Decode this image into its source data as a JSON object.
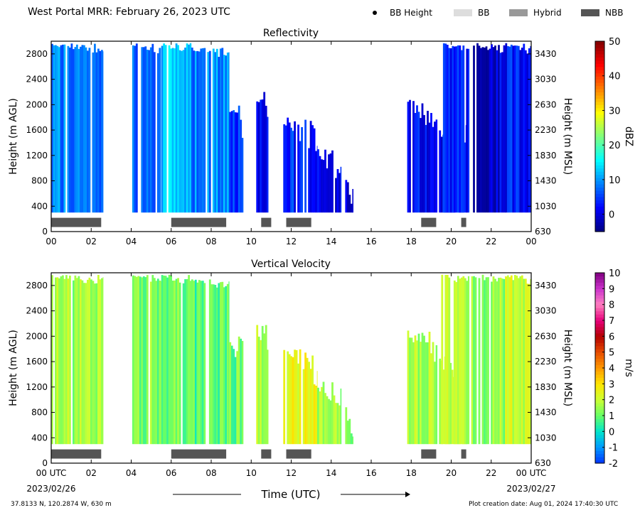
{
  "header": {
    "title": "West Portal MRR:  February 26, 2023 UTC",
    "legend": [
      {
        "label": "BB Height",
        "kind": "dot",
        "color": "#000000"
      },
      {
        "label": "BB",
        "kind": "box",
        "color": "#dddddd"
      },
      {
        "label": "Hybrid",
        "kind": "box",
        "color": "#999999"
      },
      {
        "label": "NBB",
        "kind": "box",
        "color": "#555555"
      }
    ]
  },
  "footer": {
    "coords": "37.8133 N, 120.2874 W, 630 m",
    "created": "Plot creation date: Aug 01, 2024 17:40:30 UTC",
    "x_title": "Time (UTC)",
    "start_time": "00 UTC",
    "start_date": "2023/02/26",
    "end_time": "00 UTC",
    "end_date": "2023/02/27"
  },
  "chart_data": [
    {
      "type": "heatmap",
      "title": "Reflectivity",
      "ylabel": "Height (m AGL)",
      "y2label": "Height (m MSL)",
      "colorbar_label": "dBZ",
      "xlim": [
        0,
        24
      ],
      "ylim": [
        0,
        3000
      ],
      "x_ticks": [
        "00",
        "02",
        "04",
        "06",
        "08",
        "10",
        "12",
        "14",
        "16",
        "18",
        "20",
        "22",
        "00"
      ],
      "y_ticks": [
        0,
        400,
        800,
        1200,
        1600,
        2000,
        2400,
        2800
      ],
      "y2_ticks": [
        630,
        1030,
        1430,
        1830,
        2230,
        2630,
        3030,
        3430
      ],
      "colorbar_range": [
        -5,
        50
      ],
      "colorbar_ticks": [
        0,
        10,
        20,
        30,
        40,
        50
      ],
      "colorbar_colors": [
        "#00007f",
        "#0000ff",
        "#007fff",
        "#00ffff",
        "#7fff7f",
        "#ffff00",
        "#ff7f00",
        "#ff0000",
        "#7f0000"
      ],
      "echo_cells": [
        {
          "start": 0.0,
          "end": 2.6,
          "top": 2970,
          "value": 9
        },
        {
          "start": 4.05,
          "end": 5.5,
          "top": 2970,
          "value": 7
        },
        {
          "start": 5.5,
          "end": 7.0,
          "top": 2970,
          "value": 12
        },
        {
          "start": 7.0,
          "end": 8.9,
          "top": 2900,
          "value": 9
        },
        {
          "start": 8.9,
          "end": 9.6,
          "top": 2000,
          "value": 4
        },
        {
          "start": 10.25,
          "end": 10.85,
          "top": 2200,
          "value": 2
        },
        {
          "start": 11.6,
          "end": 13.3,
          "top": 1800,
          "value": 4
        },
        {
          "start": 13.3,
          "end": 14.5,
          "top": 1300,
          "value": 2
        },
        {
          "start": 14.7,
          "end": 15.1,
          "top": 900,
          "value": 0
        },
        {
          "start": 17.8,
          "end": 19.3,
          "top": 2100,
          "value": 2
        },
        {
          "start": 19.3,
          "end": 20.8,
          "top": 1700,
          "value": 2
        },
        {
          "start": 19.5,
          "end": 20.9,
          "top": 2970,
          "value": 3
        },
        {
          "start": 21.0,
          "end": 22.7,
          "top": 2970,
          "value": 0
        },
        {
          "start": 22.7,
          "end": 24.0,
          "top": 2970,
          "value": 3
        }
      ],
      "nbb_periods": [
        [
          0.0,
          2.5
        ],
        [
          6.0,
          8.75
        ],
        [
          10.5,
          11.0
        ],
        [
          11.75,
          13.0
        ],
        [
          18.5,
          19.25
        ],
        [
          20.5,
          20.75
        ]
      ]
    },
    {
      "type": "heatmap",
      "title": "Vertical Velocity",
      "ylabel": "Height (m AGL)",
      "y2label": "Height (m MSL)",
      "colorbar_label": "m/s",
      "xlim": [
        0,
        24
      ],
      "ylim": [
        0,
        3000
      ],
      "x_ticks": [
        "00 UTC",
        "02",
        "04",
        "06",
        "08",
        "10",
        "12",
        "14",
        "16",
        "18",
        "20",
        "22",
        "00 UTC"
      ],
      "y_ticks": [
        0,
        400,
        800,
        1200,
        1600,
        2000,
        2400,
        2800
      ],
      "y2_ticks": [
        630,
        1030,
        1430,
        1830,
        2230,
        2630,
        3030,
        3430
      ],
      "colorbar_range": [
        -2,
        10
      ],
      "colorbar_ticks": [
        -2,
        -1,
        0,
        1,
        2,
        3,
        4,
        5,
        6,
        7,
        8,
        9,
        10
      ],
      "colorbar_colors": [
        "#0033ff",
        "#0099ff",
        "#00e5cc",
        "#66ff66",
        "#ccff33",
        "#ffe600",
        "#ff9900",
        "#e64d00",
        "#b30000",
        "#e6007a",
        "#ff80c0",
        "#cc33cc",
        "#800080"
      ],
      "echo_cells": [
        {
          "start": 0.0,
          "end": 2.6,
          "top": 2970,
          "value": 1.6
        },
        {
          "start": 4.05,
          "end": 5.5,
          "top": 2970,
          "value": 1.3
        },
        {
          "start": 5.5,
          "end": 7.0,
          "top": 2970,
          "value": 1.0
        },
        {
          "start": 7.0,
          "end": 8.9,
          "top": 2900,
          "value": 0.8
        },
        {
          "start": 8.9,
          "end": 9.6,
          "top": 2000,
          "value": 1.0
        },
        {
          "start": 10.25,
          "end": 10.85,
          "top": 2200,
          "value": 1.8
        },
        {
          "start": 11.6,
          "end": 13.3,
          "top": 1800,
          "value": 2.4
        },
        {
          "start": 13.3,
          "end": 14.5,
          "top": 1300,
          "value": 1.5
        },
        {
          "start": 14.7,
          "end": 15.1,
          "top": 900,
          "value": 1.2
        },
        {
          "start": 17.8,
          "end": 19.3,
          "top": 2100,
          "value": 1.6
        },
        {
          "start": 19.3,
          "end": 20.8,
          "top": 1700,
          "value": 2.1
        },
        {
          "start": 19.5,
          "end": 20.9,
          "top": 2970,
          "value": 1.8
        },
        {
          "start": 21.0,
          "end": 22.7,
          "top": 2970,
          "value": 1.5
        },
        {
          "start": 22.7,
          "end": 24.0,
          "top": 2970,
          "value": 2.0
        }
      ],
      "nbb_periods": [
        [
          0.0,
          2.5
        ],
        [
          6.0,
          8.75
        ],
        [
          10.5,
          11.0
        ],
        [
          11.75,
          13.0
        ],
        [
          18.5,
          19.25
        ],
        [
          20.5,
          20.75
        ]
      ]
    }
  ]
}
